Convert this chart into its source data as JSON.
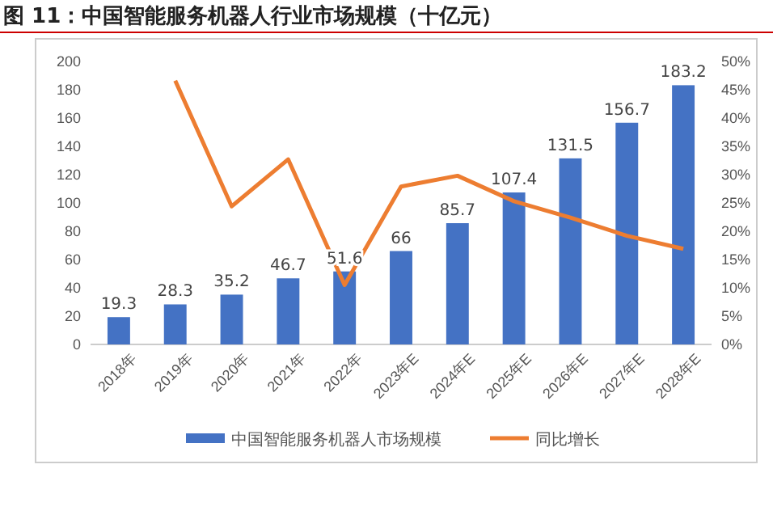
{
  "chart_data": {
    "type": "bar",
    "title": "图 11：中国智能服务机器人行业市场规模（十亿元）",
    "categories": [
      "2018年",
      "2019年",
      "2020年",
      "2021年",
      "2022年",
      "2023年E",
      "2024年E",
      "2025年E",
      "2026年E",
      "2027年E",
      "2028年E"
    ],
    "series": [
      {
        "name": "中国智能服务机器人市场规模",
        "color": "#4472c4",
        "values": [
          19.3,
          28.3,
          35.2,
          46.7,
          51.6,
          66,
          85.7,
          107.4,
          131.5,
          156.7,
          183.2
        ],
        "data_labels": true
      },
      {
        "name": "同比增长",
        "type": "line",
        "axis": "y2",
        "color": "#ed7d31",
        "values": [
          null,
          46.6,
          24.4,
          32.7,
          10.5,
          27.9,
          29.8,
          25.3,
          22.4,
          19.2,
          16.9
        ]
      }
    ],
    "ylim": [
      0,
      200
    ],
    "yticks": [
      0,
      20,
      40,
      60,
      80,
      100,
      120,
      140,
      160,
      180,
      200
    ],
    "y2lim": [
      0,
      50
    ],
    "y2ticks": [
      {
        "value": 0,
        "label": "0%"
      },
      {
        "value": 5,
        "label": "5%"
      },
      {
        "value": 10,
        "label": "10%"
      },
      {
        "value": 15,
        "label": "15%"
      },
      {
        "value": 20,
        "label": "20%"
      },
      {
        "value": 25,
        "label": "25%"
      },
      {
        "value": 30,
        "label": "30%"
      },
      {
        "value": 35,
        "label": "35%"
      },
      {
        "value": 40,
        "label": "40%"
      },
      {
        "value": 45,
        "label": "45%"
      },
      {
        "value": 50,
        "label": "50%"
      }
    ],
    "legend": "bottom",
    "marker": "none",
    "line_style": "solid"
  }
}
